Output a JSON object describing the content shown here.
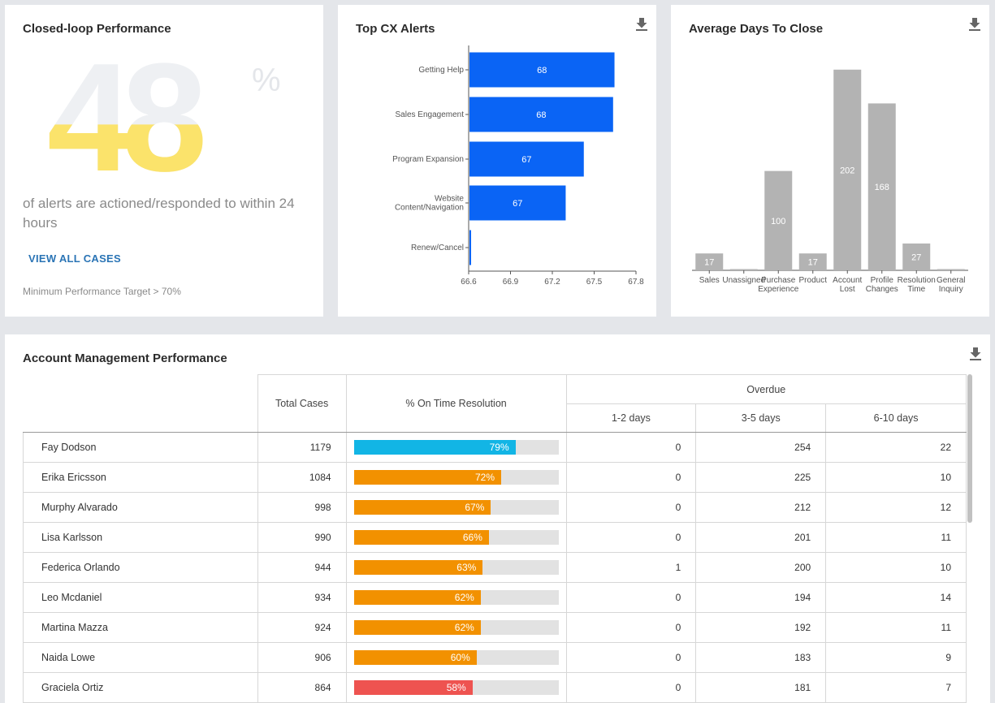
{
  "closed_loop": {
    "title": "Closed-loop Performance",
    "value": "48",
    "unit": "%",
    "fill_fraction": 0.48,
    "description": "of alerts are actioned/responded to within 24 hours",
    "view_all": "VIEW ALL CASES",
    "min_target": "Minimum Performance Target > 70%",
    "colors": {
      "fill": "#fbe36b",
      "empty": "#eef0f3"
    }
  },
  "top_alerts": {
    "title": "Top CX Alerts",
    "download_icon": "download-icon",
    "chart_data": {
      "type": "bar",
      "orientation": "horizontal",
      "categories": [
        "Getting Help",
        "Sales Engagement",
        "Program Expansion",
        "Website Content/Navigation",
        "Renew/Cancel"
      ],
      "category_lines": [
        [
          "Getting Help"
        ],
        [
          "Sales Engagement"
        ],
        [
          "Program Expansion"
        ],
        [
          "Website",
          "Content/Navigation"
        ],
        [
          "Renew/Cancel"
        ]
      ],
      "values": [
        67.64,
        67.63,
        67.42,
        67.29,
        66.61
      ],
      "data_labels": [
        "68",
        "68",
        "67",
        "67",
        ""
      ],
      "xlim": [
        66.6,
        67.8
      ],
      "xticks": [
        "66.6",
        "66.9",
        "67.2",
        "67.5",
        "67.8"
      ],
      "color": "#0a64f5"
    }
  },
  "avg_days": {
    "title": "Average Days To Close",
    "download_icon": "download-icon",
    "chart_data": {
      "type": "bar",
      "categories": [
        "Sales",
        "Unassigned",
        "Purchase Experience",
        "Product",
        "Account Lost",
        "Profile Changes",
        "Resolution Time",
        "General Inquiry"
      ],
      "category_lines": [
        [
          "Sales"
        ],
        [
          "Unassigned"
        ],
        [
          "Purchase",
          "Experience"
        ],
        [
          "Product"
        ],
        [
          "Account",
          "Lost"
        ],
        [
          "Profile",
          "Changes"
        ],
        [
          "Resolution",
          "Time"
        ],
        [
          "General",
          "Inquiry"
        ]
      ],
      "values": [
        17,
        1,
        100,
        17,
        202,
        168,
        27,
        0.5
      ],
      "data_labels": [
        "17",
        "",
        "100",
        "17",
        "202",
        "168",
        "27",
        ""
      ],
      "ylim": [
        0,
        210
      ],
      "color": "#b3b3b3"
    }
  },
  "account": {
    "title": "Account Management Performance",
    "download_icon": "download-icon",
    "headers": {
      "total": "Total Cases",
      "ontime": "% On Time Resolution",
      "overdue": "Overdue",
      "d1": "1-2 days",
      "d2": "3-5 days",
      "d3": "6-10 days"
    },
    "rows": [
      {
        "name": "Fay Dodson",
        "total": "1179",
        "pct": 79,
        "pct_label": "79%",
        "color": "#12b5e5",
        "d1": "0",
        "d2": "254",
        "d3": "22"
      },
      {
        "name": "Erika Ericsson",
        "total": "1084",
        "pct": 72,
        "pct_label": "72%",
        "color": "#f29100",
        "d1": "0",
        "d2": "225",
        "d3": "10"
      },
      {
        "name": "Murphy Alvarado",
        "total": "998",
        "pct": 67,
        "pct_label": "67%",
        "color": "#f29100",
        "d1": "0",
        "d2": "212",
        "d3": "12"
      },
      {
        "name": "Lisa Karlsson",
        "total": "990",
        "pct": 66,
        "pct_label": "66%",
        "color": "#f29100",
        "d1": "0",
        "d2": "201",
        "d3": "11"
      },
      {
        "name": "Federica Orlando",
        "total": "944",
        "pct": 63,
        "pct_label": "63%",
        "color": "#f29100",
        "d1": "1",
        "d2": "200",
        "d3": "10"
      },
      {
        "name": "Leo Mcdaniel",
        "total": "934",
        "pct": 62,
        "pct_label": "62%",
        "color": "#f29100",
        "d1": "0",
        "d2": "194",
        "d3": "14"
      },
      {
        "name": "Martina Mazza",
        "total": "924",
        "pct": 62,
        "pct_label": "62%",
        "color": "#f29100",
        "d1": "0",
        "d2": "192",
        "d3": "11"
      },
      {
        "name": "Naida Lowe",
        "total": "906",
        "pct": 60,
        "pct_label": "60%",
        "color": "#f29100",
        "d1": "0",
        "d2": "183",
        "d3": "9"
      },
      {
        "name": "Graciela Ortiz",
        "total": "864",
        "pct": 58,
        "pct_label": "58%",
        "color": "#ee5350",
        "d1": "0",
        "d2": "181",
        "d3": "7"
      }
    ]
  }
}
